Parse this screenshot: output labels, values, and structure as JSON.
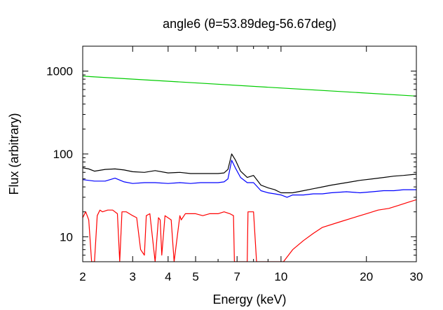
{
  "chart_data": {
    "type": "line",
    "title": "angle6 (θ=53.89deg-56.67deg)",
    "xlabel": "Energy (keV)",
    "ylabel": "Flux (arbitrary)",
    "xscale": "log",
    "yscale": "log",
    "xlim": [
      2,
      30
    ],
    "ylim": [
      5,
      2000
    ],
    "x_ticks": [
      {
        "value": 2,
        "label": "2"
      },
      {
        "value": 3,
        "label": "3"
      },
      {
        "value": 4,
        "label": "4"
      },
      {
        "value": 5,
        "label": "5"
      },
      {
        "value": 7,
        "label": "7"
      },
      {
        "value": 10,
        "label": "10"
      },
      {
        "value": 20,
        "label": "20"
      },
      {
        "value": 30,
        "label": "30"
      }
    ],
    "y_ticks": [
      {
        "value": 10,
        "label": "10"
      },
      {
        "value": 100,
        "label": "100"
      },
      {
        "value": 1000,
        "label": "1000"
      }
    ],
    "grid": false,
    "legend": "none",
    "series": [
      {
        "color": "#00cc00",
        "x": [
          2,
          30
        ],
        "y": [
          870,
          500
        ]
      },
      {
        "color": "#000000",
        "x": [
          2,
          2.1,
          2.2,
          2.4,
          2.6,
          2.8,
          3.0,
          3.3,
          3.6,
          4.0,
          4.4,
          4.8,
          5.2,
          5.6,
          6.0,
          6.3,
          6.5,
          6.7,
          6.9,
          7.2,
          7.6,
          8.0,
          8.5,
          9.0,
          9.5,
          10,
          11,
          12,
          13,
          14,
          15,
          17,
          19,
          21,
          23,
          25,
          27,
          30
        ],
        "y": [
          68,
          66,
          62,
          65,
          66,
          64,
          61,
          60,
          63,
          59,
          60,
          58,
          58,
          58,
          58,
          59,
          65,
          100,
          85,
          62,
          52,
          55,
          42,
          39,
          37,
          34,
          34,
          36,
          38,
          40,
          42,
          45,
          48,
          50,
          52,
          54,
          55,
          57
        ]
      },
      {
        "color": "#0000ff",
        "x": [
          2,
          2.2,
          2.4,
          2.6,
          2.8,
          3.0,
          3.3,
          3.6,
          4.0,
          4.4,
          4.8,
          5.2,
          5.6,
          6.0,
          6.3,
          6.5,
          6.7,
          6.9,
          7.2,
          7.6,
          8.0,
          8.5,
          9.0,
          9.5,
          10,
          10.5,
          11,
          12,
          13,
          14,
          15,
          17,
          19,
          21,
          23,
          25,
          27,
          30
        ],
        "y": [
          49,
          47,
          47,
          51,
          46,
          44,
          45,
          45,
          44,
          45,
          44,
          45,
          45,
          45,
          46,
          50,
          84,
          68,
          52,
          45,
          45,
          36,
          34,
          33,
          32,
          30,
          32,
          32,
          33,
          33,
          34,
          35,
          34,
          35,
          36,
          36,
          37,
          37
        ]
      },
      {
        "color": "#ff0000",
        "x": [
          2,
          2.05,
          2.1,
          2.15,
          2.2,
          2.25,
          2.3,
          2.35,
          2.45,
          2.55,
          2.65,
          2.7,
          2.75,
          2.85,
          3.0,
          3.1,
          3.2,
          3.3,
          3.35,
          3.45,
          3.6,
          3.7,
          3.75,
          3.8,
          3.9,
          4.1,
          4.2,
          4.4,
          4.45,
          4.6,
          4.8,
          5.0,
          5.3,
          5.6,
          6.0,
          6.3,
          6.6,
          6.8,
          6.85,
          7.0,
          7.6,
          7.65,
          8.0,
          8.2,
          8.25,
          8.8,
          9.2,
          10.2,
          11,
          12,
          13,
          14,
          16,
          18,
          20,
          22,
          24,
          26,
          28,
          30
        ],
        "y": [
          17,
          20,
          16,
          5,
          5,
          18,
          21,
          20,
          21,
          21,
          19,
          5,
          20,
          20,
          18,
          17,
          7,
          6,
          18,
          19,
          5,
          17,
          16,
          6,
          18,
          16,
          5,
          18,
          16,
          19,
          19,
          19,
          18,
          19,
          19,
          20,
          19,
          18,
          5,
          5,
          5,
          20,
          20,
          5,
          5,
          5,
          5,
          5,
          7,
          9,
          11,
          13,
          15,
          17,
          19,
          21,
          22,
          24,
          26,
          28
        ]
      }
    ]
  }
}
